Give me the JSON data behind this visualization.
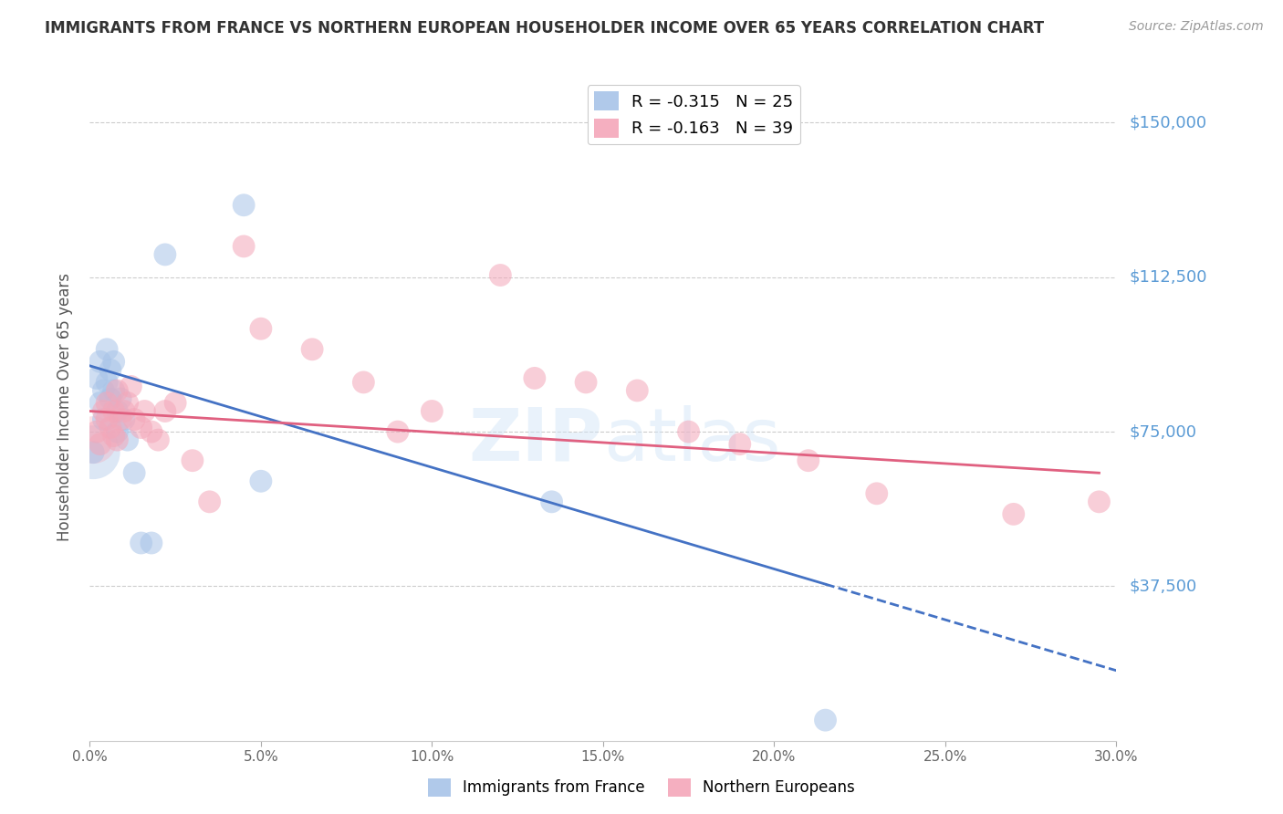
{
  "title": "IMMIGRANTS FROM FRANCE VS NORTHERN EUROPEAN HOUSEHOLDER INCOME OVER 65 YEARS CORRELATION CHART",
  "source": "Source: ZipAtlas.com",
  "ylabel": "Householder Income Over 65 years",
  "xlabel_ticks": [
    "0.0%",
    "5.0%",
    "10.0%",
    "15.0%",
    "20.0%",
    "25.0%",
    "30.0%"
  ],
  "ytick_labels": [
    "$37,500",
    "$75,000",
    "$112,500",
    "$150,000"
  ],
  "ytick_values": [
    37500,
    75000,
    112500,
    150000
  ],
  "xlim": [
    0.0,
    0.3
  ],
  "ylim": [
    0,
    162000
  ],
  "legend1_label": "R = -0.315   N = 25",
  "legend2_label": "R = -0.163   N = 39",
  "legend1_color": "#a8c4e8",
  "legend2_color": "#f4a7b9",
  "line1_color": "#4472c4",
  "line2_color": "#e06080",
  "watermark": "ZIPatlas",
  "france_x": [
    0.001,
    0.002,
    0.003,
    0.003,
    0.004,
    0.004,
    0.005,
    0.005,
    0.006,
    0.006,
    0.007,
    0.007,
    0.008,
    0.008,
    0.009,
    0.01,
    0.011,
    0.013,
    0.015,
    0.018,
    0.022,
    0.045,
    0.05,
    0.135,
    0.215
  ],
  "france_y": [
    70000,
    88000,
    82000,
    92000,
    78000,
    85000,
    95000,
    87000,
    90000,
    83000,
    85000,
    92000,
    80000,
    75000,
    83000,
    78000,
    73000,
    65000,
    48000,
    48000,
    118000,
    130000,
    63000,
    58000,
    5000
  ],
  "northern_x": [
    0.002,
    0.003,
    0.004,
    0.005,
    0.005,
    0.006,
    0.007,
    0.007,
    0.008,
    0.008,
    0.009,
    0.01,
    0.011,
    0.012,
    0.013,
    0.015,
    0.016,
    0.018,
    0.02,
    0.022,
    0.025,
    0.03,
    0.035,
    0.045,
    0.05,
    0.065,
    0.08,
    0.09,
    0.1,
    0.12,
    0.13,
    0.145,
    0.16,
    0.175,
    0.19,
    0.21,
    0.23,
    0.27,
    0.295
  ],
  "northern_y": [
    75000,
    72000,
    80000,
    78000,
    82000,
    76000,
    80000,
    74000,
    85000,
    73000,
    78000,
    80000,
    82000,
    86000,
    78000,
    76000,
    80000,
    75000,
    73000,
    80000,
    82000,
    68000,
    58000,
    120000,
    100000,
    95000,
    87000,
    75000,
    80000,
    113000,
    88000,
    87000,
    85000,
    75000,
    72000,
    68000,
    60000,
    55000,
    58000
  ],
  "france_line_x0": 0.0,
  "france_line_y0": 91000,
  "france_line_x1": 0.215,
  "france_line_y1": 38000,
  "northern_line_x0": 0.0,
  "northern_line_y0": 80000,
  "northern_line_x1": 0.295,
  "northern_line_y1": 65000,
  "scatter_size": 320,
  "scatter_alpha": 0.55,
  "background_color": "#ffffff",
  "grid_color": "#cccccc",
  "title_color": "#333333",
  "right_label_color": "#5b9bd5"
}
